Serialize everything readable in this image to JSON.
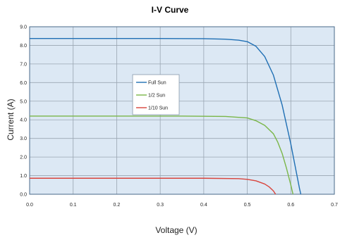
{
  "chart_data": {
    "type": "line",
    "title": "I-V Curve",
    "xlabel": "Voltage (V)",
    "ylabel": "Current (A)",
    "xlim": [
      0,
      0.7
    ],
    "ylim": [
      0,
      9
    ],
    "x_ticks": [
      "0.0",
      "0.1",
      "0.2",
      "0.3",
      "0.4",
      "0.5",
      "0.6",
      "0.7"
    ],
    "y_ticks": [
      "0.0",
      "1.0",
      "2.0",
      "3.0",
      "4.0",
      "5.0",
      "6.0",
      "7.0",
      "8.0",
      "9.0"
    ],
    "grid": true,
    "legend_position": "center-left",
    "plot_background": "#dce8f4",
    "series": [
      {
        "name": "Full Sun",
        "color": "#1f6fb4",
        "x": [
          0.0,
          0.3,
          0.4,
          0.45,
          0.48,
          0.5,
          0.52,
          0.54,
          0.56,
          0.58,
          0.6,
          0.61,
          0.62,
          0.623
        ],
        "y": [
          8.37,
          8.37,
          8.36,
          8.33,
          8.28,
          8.2,
          7.95,
          7.4,
          6.4,
          4.8,
          2.7,
          1.5,
          0.3,
          0.0
        ]
      },
      {
        "name": "1/2 Sun",
        "color": "#7ab648",
        "x": [
          0.0,
          0.35,
          0.45,
          0.5,
          0.52,
          0.54,
          0.56,
          0.57,
          0.58,
          0.59,
          0.6,
          0.605
        ],
        "y": [
          4.2,
          4.2,
          4.18,
          4.1,
          3.95,
          3.7,
          3.25,
          2.8,
          2.2,
          1.4,
          0.5,
          0.0
        ]
      },
      {
        "name": "1/10 Sun",
        "color": "#d9443c",
        "x": [
          0.0,
          0.4,
          0.48,
          0.5,
          0.52,
          0.54,
          0.55,
          0.56,
          0.565
        ],
        "y": [
          0.86,
          0.86,
          0.84,
          0.8,
          0.72,
          0.55,
          0.4,
          0.18,
          0.0
        ]
      }
    ]
  }
}
